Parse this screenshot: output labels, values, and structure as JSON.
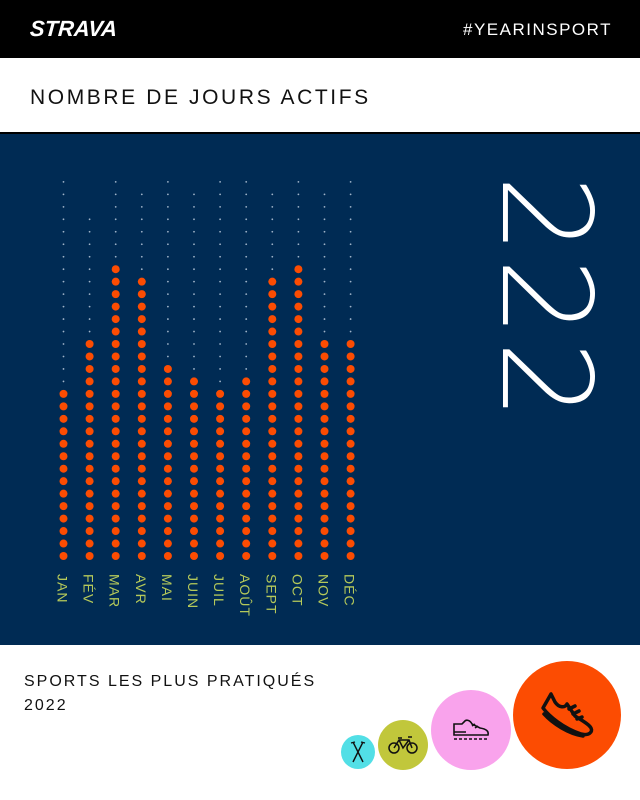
{
  "header": {
    "logo": "STRAVA",
    "hashtag": "#YEARINSPORT"
  },
  "section_title": "NOMBRE DE JOURS ACTIFS",
  "total_active_days": "222",
  "chart_data": {
    "type": "dot-matrix",
    "categories": [
      "JAN",
      "FÉV",
      "MAR",
      "AVR",
      "MAI",
      "JUIN",
      "JUIL",
      "AOÛT",
      "SEPT",
      "OCT",
      "NOV",
      "DÉC"
    ],
    "days_in_month": [
      31,
      28,
      31,
      30,
      31,
      30,
      31,
      31,
      30,
      31,
      30,
      31
    ],
    "values": [
      14,
      18,
      24,
      23,
      16,
      15,
      14,
      15,
      23,
      24,
      18,
      18
    ],
    "colors": {
      "active": "#fc4c02",
      "inactive": "#9fb3c8",
      "background": "#002b54",
      "labels": "#b5c95a"
    }
  },
  "sports": {
    "title_line1": "SPORTS LES PLUS PRATIQUÉS",
    "title_line2": "2022",
    "items": [
      {
        "icon": "running-shoe-icon",
        "color": "#fc4c02"
      },
      {
        "icon": "hiking-shoe-icon",
        "color": "#f9a3ec"
      },
      {
        "icon": "bicycle-icon",
        "color": "#c1c73b"
      },
      {
        "icon": "ski-poles-icon",
        "color": "#52dfe6"
      }
    ]
  }
}
